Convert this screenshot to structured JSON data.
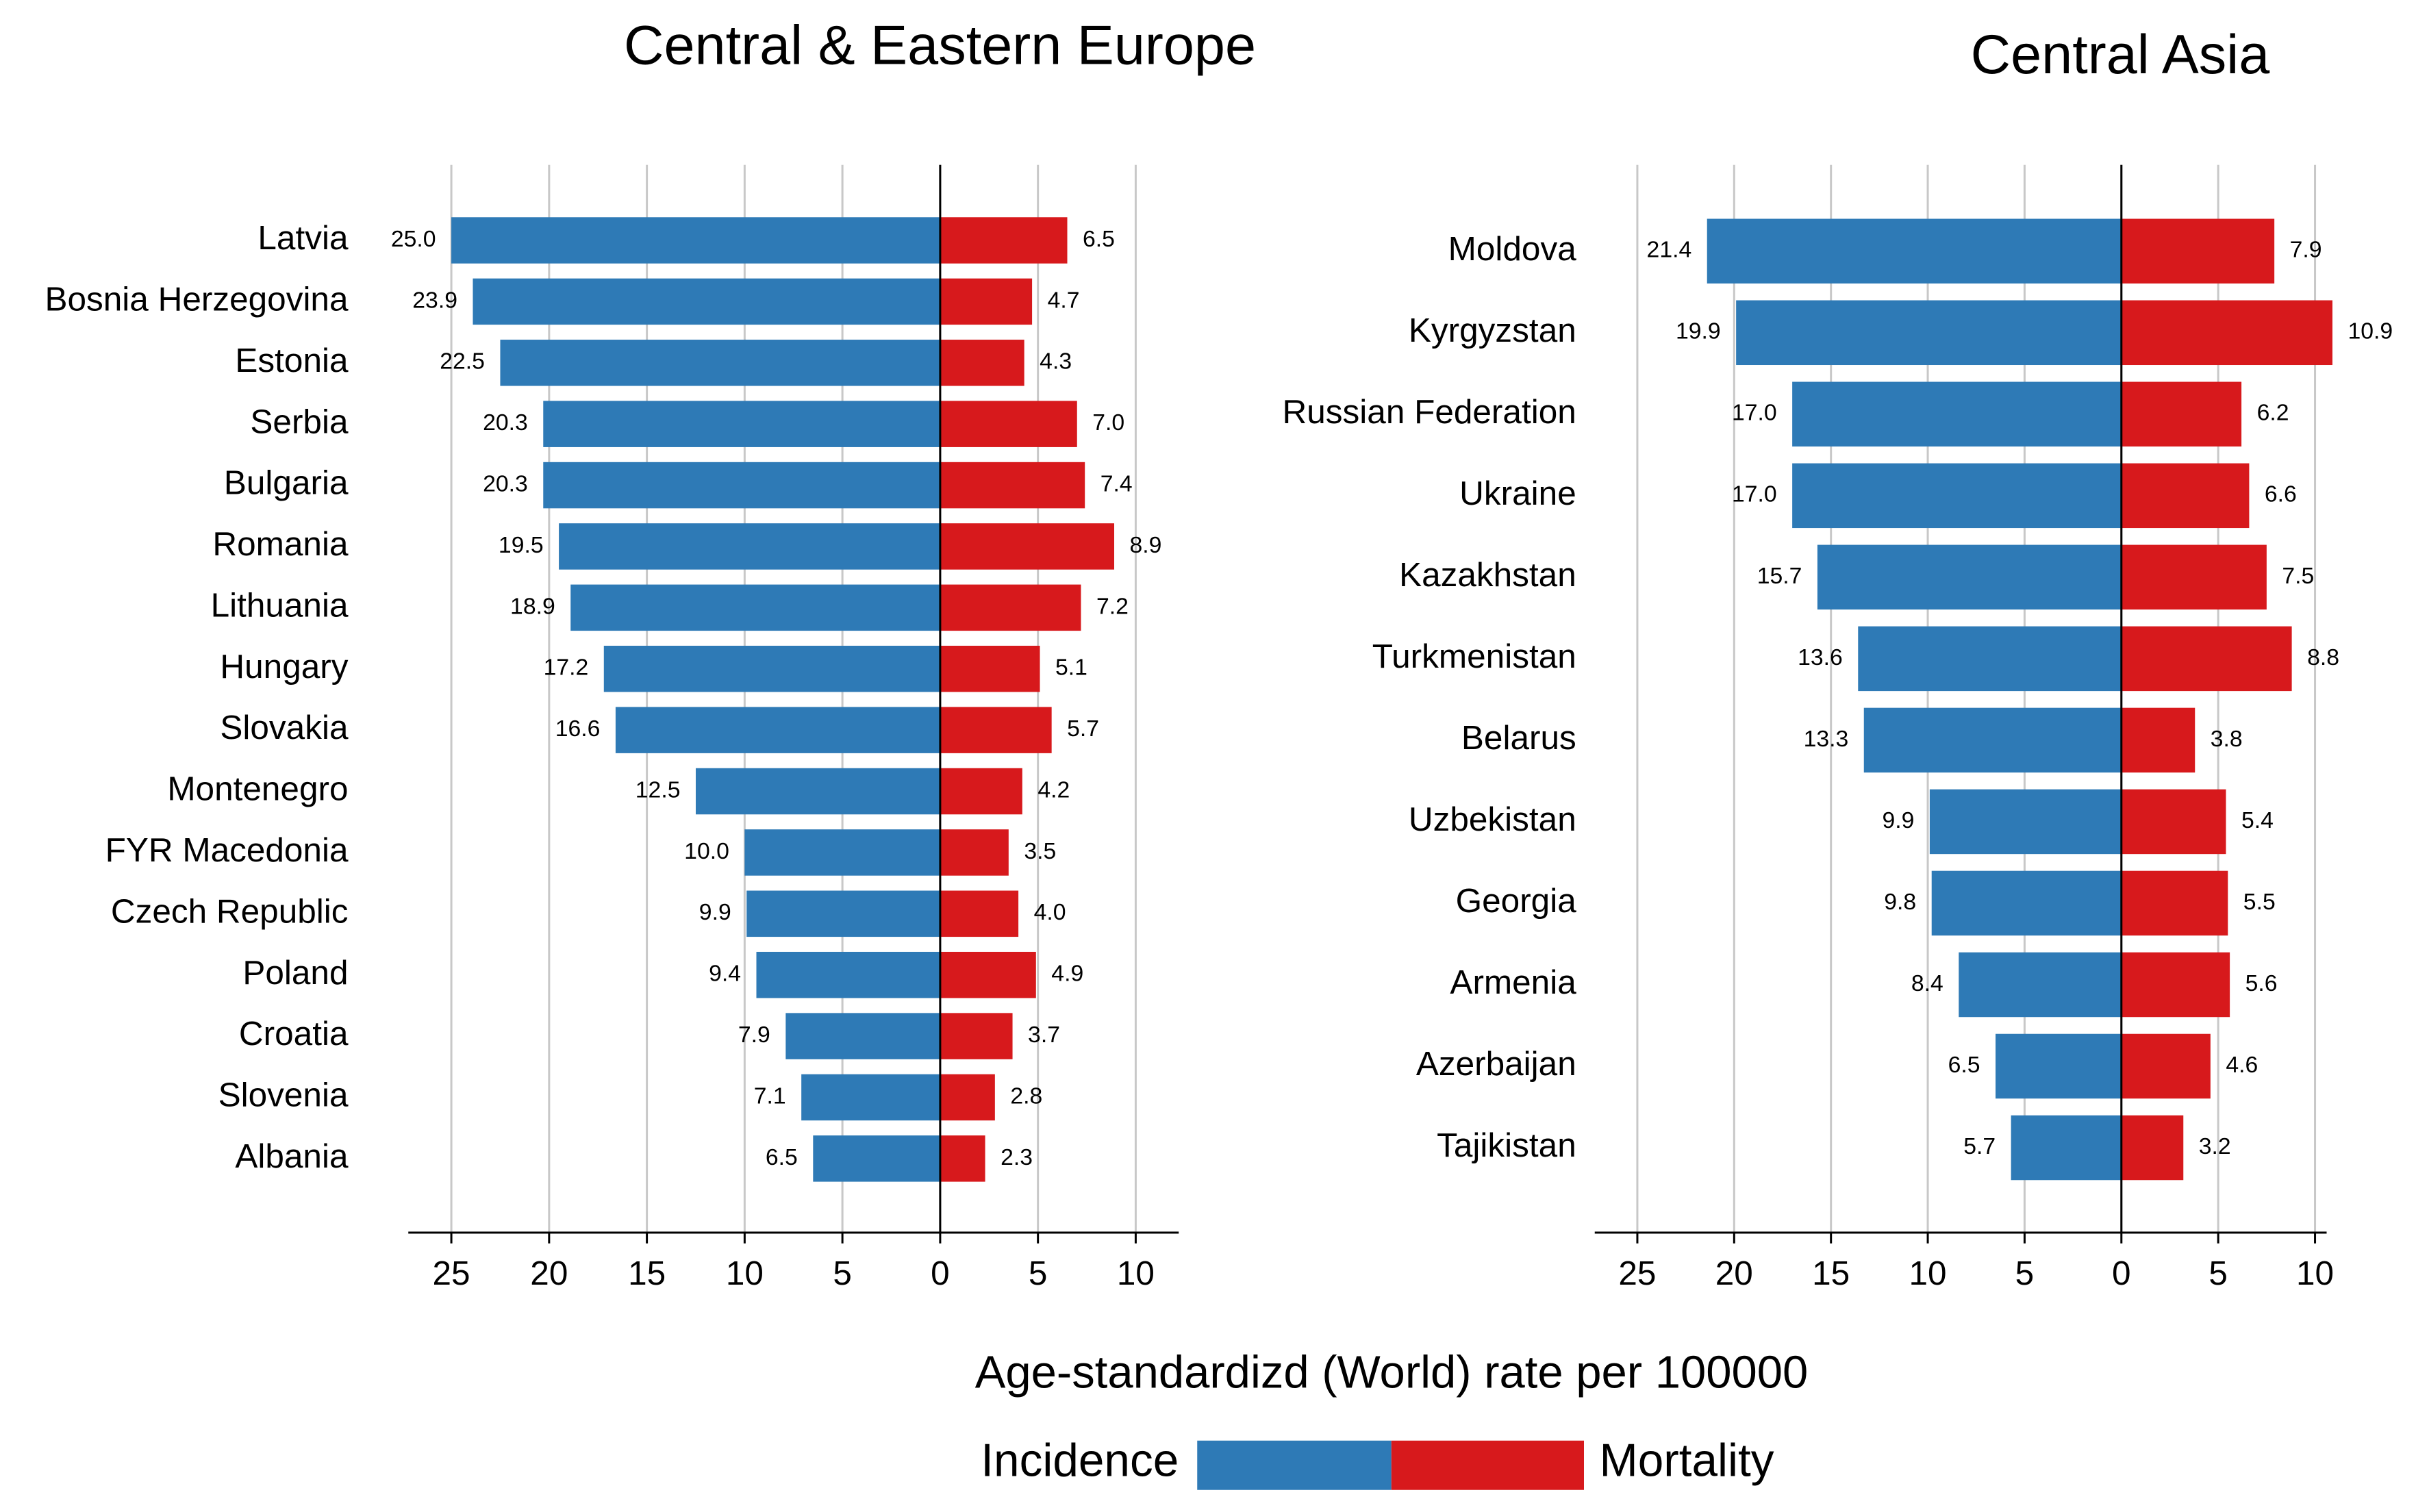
{
  "chart_data": [
    {
      "type": "butterfly",
      "title": "Central & Eastern Europe",
      "categories": [
        "Latvia",
        "Bosnia Herzegovina",
        "Estonia",
        "Serbia",
        "Bulgaria",
        "Romania",
        "Lithuania",
        "Hungary",
        "Slovakia",
        "Montenegro",
        "FYR Macedonia",
        "Czech Republic",
        "Poland",
        "Croatia",
        "Slovenia",
        "Albania"
      ],
      "series": [
        {
          "name": "Incidence",
          "color": "#2e7ab6",
          "values": [
            25.0,
            23.9,
            22.5,
            20.3,
            20.3,
            19.5,
            18.9,
            17.2,
            16.6,
            12.5,
            10.0,
            9.9,
            9.4,
            7.9,
            7.1,
            6.5
          ],
          "value_labels": [
            "25.0",
            "23.9",
            "22.5",
            "20.3",
            "20.3",
            "19.5",
            "18.9",
            "17.2",
            "16.6",
            "12.5",
            "10.0",
            "9.9",
            "9.4",
            "7.9",
            "7.1",
            "6.5"
          ]
        },
        {
          "name": "Mortality",
          "color": "#d7191c",
          "values": [
            6.5,
            4.7,
            4.3,
            7.0,
            7.4,
            8.9,
            7.2,
            5.1,
            5.7,
            4.2,
            3.5,
            4.0,
            4.9,
            3.7,
            2.8,
            2.3
          ],
          "value_labels": [
            "6.5",
            "4.7",
            "4.3",
            "7.0",
            "7.4",
            "8.9",
            "7.2",
            "5.1",
            "5.7",
            "4.2",
            "3.5",
            "4.0",
            "4.9",
            "3.7",
            "2.8",
            "2.3"
          ]
        }
      ],
      "xlim": [
        -27.2,
        12.2
      ],
      "xticks": [
        {
          "value": -25,
          "label": "25"
        },
        {
          "value": -20,
          "label": "20"
        },
        {
          "value": -15,
          "label": "15"
        },
        {
          "value": -10,
          "label": "10"
        },
        {
          "value": -5,
          "label": "5"
        },
        0,
        5,
        10
      ],
      "grid": true
    },
    {
      "type": "butterfly",
      "title": "Central Asia",
      "categories": [
        "Moldova",
        "Kyrgyzstan",
        "Russian Federation",
        "Ukraine",
        "Kazakhstan",
        "Turkmenistan",
        "Belarus",
        "Uzbekistan",
        "Georgia",
        "Armenia",
        "Azerbaijan",
        "Tajikistan"
      ],
      "series": [
        {
          "name": "Incidence",
          "color": "#2e7ab6",
          "values": [
            21.4,
            19.9,
            17.0,
            17.0,
            15.7,
            13.6,
            13.3,
            9.9,
            9.8,
            8.4,
            6.5,
            5.7
          ],
          "value_labels": [
            "21.4",
            "19.9",
            "17.0",
            "17.0",
            "15.7",
            "13.6",
            "13.3",
            "9.9",
            "9.8",
            "8.4",
            "6.5",
            "5.7"
          ]
        },
        {
          "name": "Mortality",
          "color": "#d7191c",
          "values": [
            7.9,
            10.9,
            6.2,
            6.6,
            7.5,
            8.8,
            3.8,
            5.4,
            5.5,
            5.6,
            4.6,
            3.2
          ],
          "value_labels": [
            "7.9",
            "10.9",
            "6.2",
            "6.6",
            "7.5",
            "8.8",
            "3.8",
            "5.4",
            "5.5",
            "5.6",
            "4.6",
            "3.2"
          ]
        }
      ],
      "xlim": [
        -27.2,
        10.6
      ],
      "xticks": [
        {
          "value": -25,
          "label": "25"
        },
        {
          "value": -20,
          "label": "20"
        },
        {
          "value": -15,
          "label": "15"
        },
        {
          "value": -10,
          "label": "10"
        },
        {
          "value": -5,
          "label": "5"
        },
        0,
        5,
        10
      ],
      "grid": true
    }
  ],
  "xlabel": "Age-standardizd (World) rate per 100000"
}
